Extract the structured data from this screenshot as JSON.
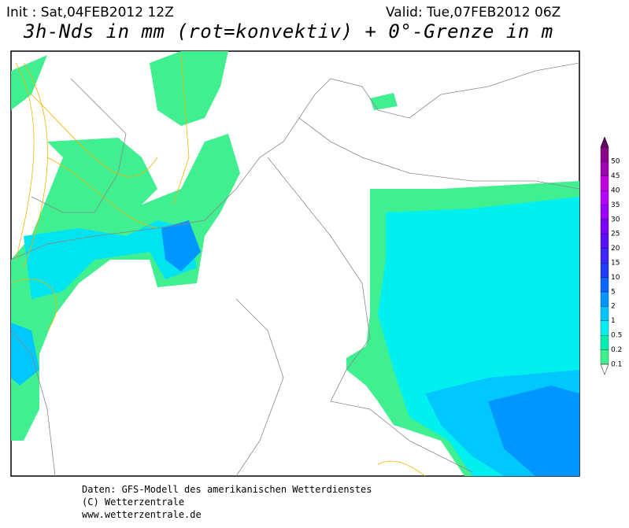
{
  "header": {
    "init": "Init : Sat,04FEB2012 12Z",
    "valid": "Valid: Tue,07FEB2012 06Z",
    "title": "3h-Nds in mm (rot=konvektiv) + 0°-Grenze in m"
  },
  "legend": {
    "levels": [
      {
        "label": "50",
        "color": "#8a008a"
      },
      {
        "label": "45",
        "color": "#a000b4"
      },
      {
        "label": "40",
        "color": "#c000e0"
      },
      {
        "label": "35",
        "color": "#b400ff"
      },
      {
        "label": "30",
        "color": "#9a00ff"
      },
      {
        "label": "25",
        "color": "#7a00ff"
      },
      {
        "label": "20",
        "color": "#5a10ff"
      },
      {
        "label": "15",
        "color": "#3c28ff"
      },
      {
        "label": "10",
        "color": "#1e3cff"
      },
      {
        "label": "5",
        "color": "#0a64ff"
      },
      {
        "label": "2",
        "color": "#0096ff"
      },
      {
        "label": "1",
        "color": "#00c8ff"
      },
      {
        "label": "0.5",
        "color": "#00f0f0"
      },
      {
        "label": "0.2",
        "color": "#00f0b4"
      },
      {
        "label": "0.1",
        "color": "#40f090"
      }
    ]
  },
  "footer": {
    "source": "Daten: GFS-Modell des amerikanischen Wetterdienstes",
    "copyright": "(C) Wetterzentrale",
    "url": "www.wetterzentrale.de"
  }
}
